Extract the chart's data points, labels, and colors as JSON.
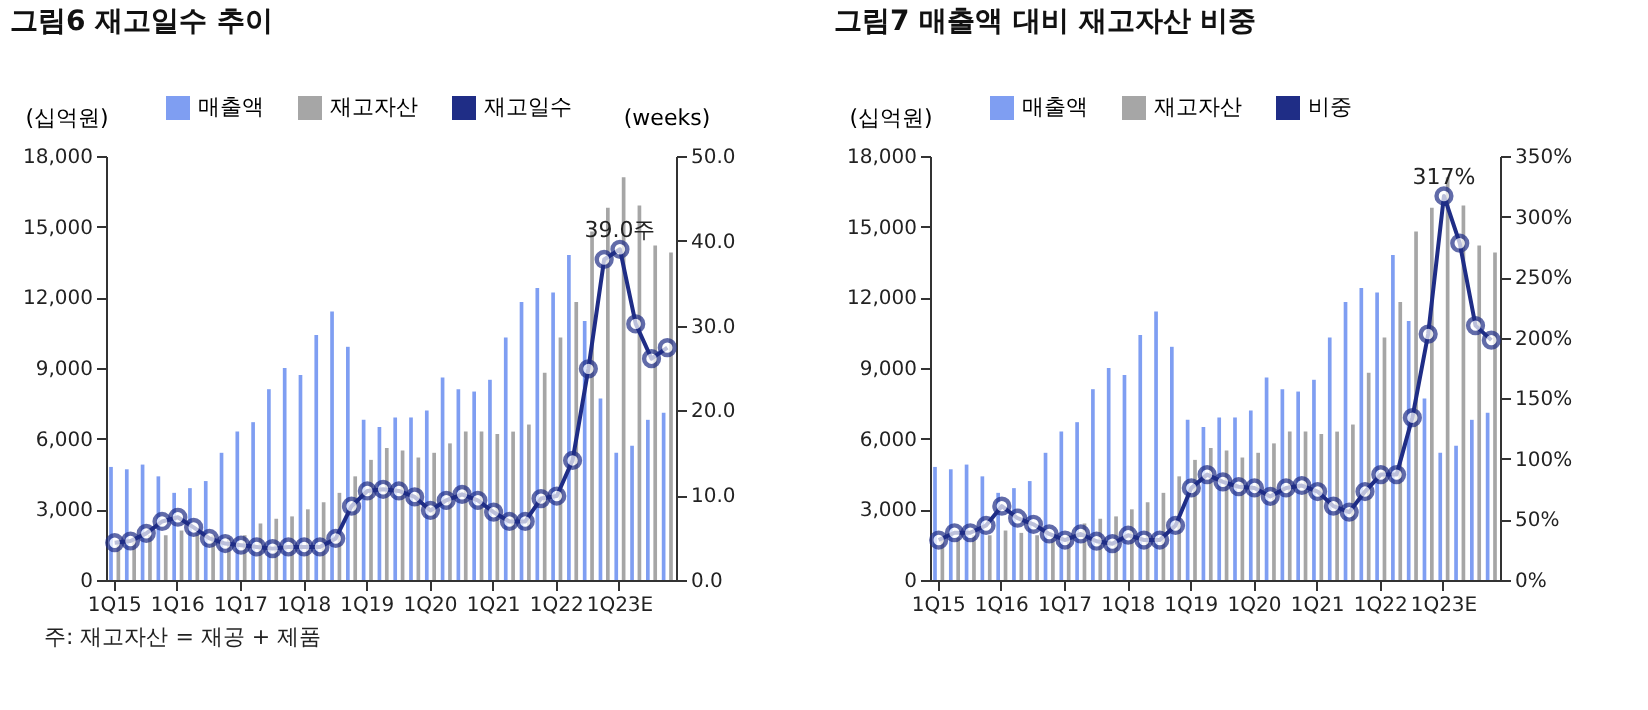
{
  "chart_data": [
    {
      "type": "bar",
      "title": "그림6 재고일수 추이",
      "ylabel": "(십억원)",
      "y2label": "(weeks)",
      "legend": "top",
      "marker": "circle",
      "categories": [
        "1Q15",
        null,
        null,
        null,
        "1Q16",
        null,
        null,
        null,
        "1Q17",
        null,
        null,
        null,
        "1Q18",
        null,
        null,
        null,
        "1Q19",
        null,
        null,
        null,
        "1Q20",
        null,
        null,
        null,
        "1Q21",
        null,
        null,
        null,
        "1Q22",
        null,
        null,
        null,
        "1Q23E",
        null,
        null,
        null
      ],
      "series": [
        {
          "name": "매출액",
          "color": "#7f9ef2",
          "values": [
            4800,
            4700,
            4900,
            4400,
            3700,
            3900,
            4200,
            5400,
            6300,
            6700,
            8100,
            9000,
            8700,
            10400,
            11400,
            9900,
            6800,
            6500,
            6900,
            6900,
            7200,
            8600,
            8100,
            8000,
            8500,
            10300,
            11800,
            12400,
            12200,
            13800,
            11000,
            7700,
            5400,
            5700,
            6800,
            7100
          ]
        },
        {
          "name": "재고자산",
          "color": "#a6a6a6",
          "values": [
            1700,
            1800,
            1900,
            1900,
            2100,
            2000,
            1900,
            1800,
            1900,
            2400,
            2600,
            2700,
            3000,
            3300,
            3700,
            4400,
            5100,
            5600,
            5500,
            5200,
            5400,
            5800,
            6300,
            6300,
            6200,
            6300,
            6600,
            8800,
            10300,
            11800,
            14800,
            15800,
            17100,
            15900,
            14200,
            13900
          ]
        },
        {
          "name": "재고일수",
          "type": "line",
          "axis": "y2",
          "color": "#1f2d86",
          "values": [
            4.4,
            4.6,
            5.5,
            6.9,
            7.4,
            6.2,
            4.9,
            4.3,
            4.1,
            3.9,
            3.7,
            3.9,
            3.9,
            3.9,
            4.9,
            8.7,
            10.5,
            10.7,
            10.5,
            9.8,
            8.2,
            9.4,
            10.1,
            9.4,
            8.0,
            6.9,
            6.9,
            9.6,
            9.9,
            14.1,
            24.9,
            37.8,
            39.0,
            30.2,
            26.1,
            27.4
          ]
        }
      ],
      "ylim": [
        0,
        18000
      ],
      "yticks": [
        0,
        {
          "value": 3000,
          "label": "3,000"
        },
        {
          "value": 6000,
          "label": "6,000"
        },
        {
          "value": 9000,
          "label": "9,000"
        },
        {
          "value": 12000,
          "label": "12,000"
        },
        {
          "value": 15000,
          "label": "15,000"
        },
        {
          "value": 18000,
          "label": "18,000"
        }
      ],
      "y2lim": [
        0,
        50
      ],
      "y2ticks": [
        {
          "value": 0,
          "label": "0.0"
        },
        {
          "value": 10,
          "label": "10.0"
        },
        {
          "value": 20,
          "label": "20.0"
        },
        {
          "value": 30,
          "label": "30.0"
        },
        {
          "value": 40,
          "label": "40.0"
        },
        {
          "value": 50,
          "label": "50.0"
        }
      ],
      "annotations": [
        {
          "text": "39.0주",
          "x": "1Q23E"
        },
        "주: 재고자산 = 재공 + 제품"
      ]
    },
    {
      "type": "bar",
      "title": "그림7 매출액 대비 재고자산 비중",
      "ylabel": "(십억원)",
      "legend": "top",
      "marker": "circle",
      "categories": [
        "1Q15",
        null,
        null,
        null,
        "1Q16",
        null,
        null,
        null,
        "1Q17",
        null,
        null,
        null,
        "1Q18",
        null,
        null,
        null,
        "1Q19",
        null,
        null,
        null,
        "1Q20",
        null,
        null,
        null,
        "1Q21",
        null,
        null,
        null,
        "1Q22",
        null,
        null,
        null,
        "1Q23E",
        null,
        null,
        null
      ],
      "series": [
        {
          "name": "매출액",
          "color": "#7f9ef2",
          "values": [
            4800,
            4700,
            4900,
            4400,
            3700,
            3900,
            4200,
            5400,
            6300,
            6700,
            8100,
            9000,
            8700,
            10400,
            11400,
            9900,
            6800,
            6500,
            6900,
            6900,
            7200,
            8600,
            8100,
            8000,
            8500,
            10300,
            11800,
            12400,
            12200,
            13800,
            11000,
            7700,
            5400,
            5700,
            6800,
            7100
          ]
        },
        {
          "name": "재고자산",
          "color": "#a6a6a6",
          "values": [
            1700,
            1800,
            1900,
            1900,
            2100,
            2000,
            1900,
            1800,
            1900,
            2400,
            2600,
            2700,
            3000,
            3300,
            3700,
            4400,
            5100,
            5600,
            5500,
            5200,
            5400,
            5800,
            6300,
            6300,
            6200,
            6300,
            6600,
            8800,
            10300,
            11800,
            14800,
            15800,
            17100,
            15900,
            14200,
            13900
          ]
        },
        {
          "name": "비중",
          "type": "line",
          "axis": "y2",
          "color": "#1f2d86",
          "values": [
            33,
            39,
            39,
            45,
            61,
            51,
            46,
            38,
            33,
            38,
            32,
            30,
            37,
            33,
            33,
            45,
            76,
            87,
            81,
            77,
            76,
            69,
            76,
            78,
            73,
            61,
            56,
            73,
            87,
            87,
            134,
            203,
            317,
            278,
            210,
            198
          ]
        }
      ],
      "ylim": [
        0,
        18000
      ],
      "yticks": [
        0,
        {
          "value": 3000,
          "label": "3,000"
        },
        {
          "value": 6000,
          "label": "6,000"
        },
        {
          "value": 9000,
          "label": "9,000"
        },
        {
          "value": 12000,
          "label": "12,000"
        },
        {
          "value": 15000,
          "label": "15,000"
        },
        {
          "value": 18000,
          "label": "18,000"
        }
      ],
      "y2lim": [
        0,
        350
      ],
      "y2ticks": [
        {
          "value": 0,
          "label": "0%"
        },
        {
          "value": 50,
          "label": "50%"
        },
        {
          "value": 100,
          "label": "100%"
        },
        {
          "value": 150,
          "label": "150%"
        },
        {
          "value": 200,
          "label": "200%"
        },
        {
          "value": 250,
          "label": "250%"
        },
        {
          "value": 300,
          "label": "300%"
        },
        {
          "value": 350,
          "label": "350%"
        }
      ],
      "annotations": [
        {
          "text": "317%",
          "x": "1Q23E"
        }
      ]
    }
  ]
}
